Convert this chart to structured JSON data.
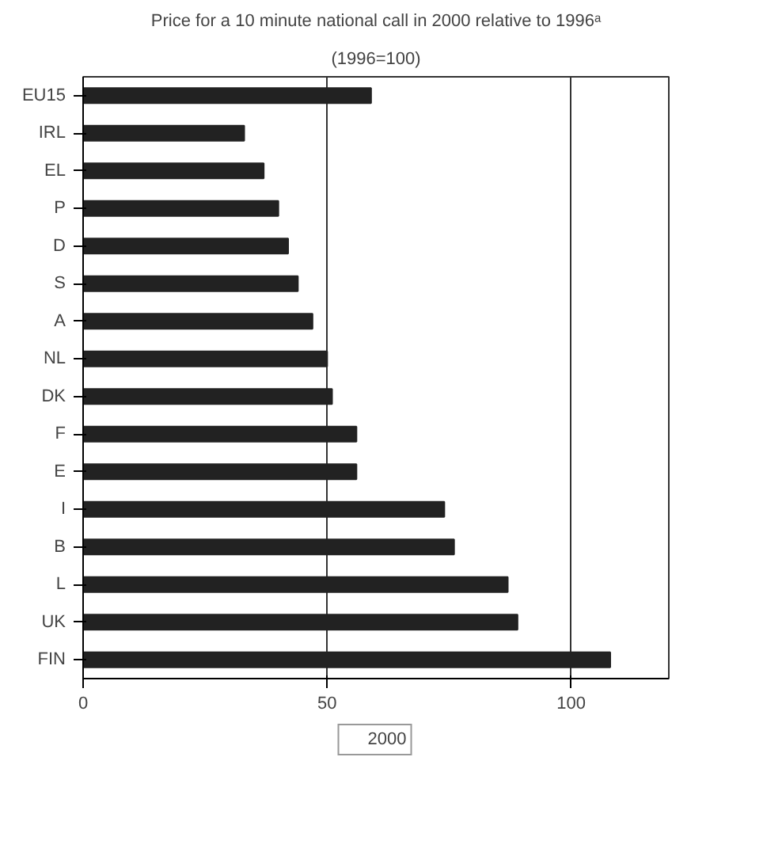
{
  "chart_data": {
    "type": "bar",
    "orientation": "horizontal",
    "title": "Price for a 10 minute national call in 2000 relative to 1996ᵃ",
    "subtitle": "(1996=100)",
    "categories": [
      "EU15",
      "IRL",
      "EL",
      "P",
      "D",
      "S",
      "A",
      "NL",
      "DK",
      "F",
      "E",
      "I",
      "B",
      "L",
      "UK",
      "FIN"
    ],
    "series": [
      {
        "name": "2000",
        "color": "#222222",
        "values": [
          59,
          33,
          37,
          40,
          42,
          44,
          47,
          50,
          51,
          56,
          56,
          74,
          76,
          87,
          89,
          108
        ]
      }
    ],
    "xlim": [
      0,
      120
    ],
    "xticks": [
      0,
      50,
      100
    ],
    "grid": "x",
    "legend": "bottom"
  }
}
